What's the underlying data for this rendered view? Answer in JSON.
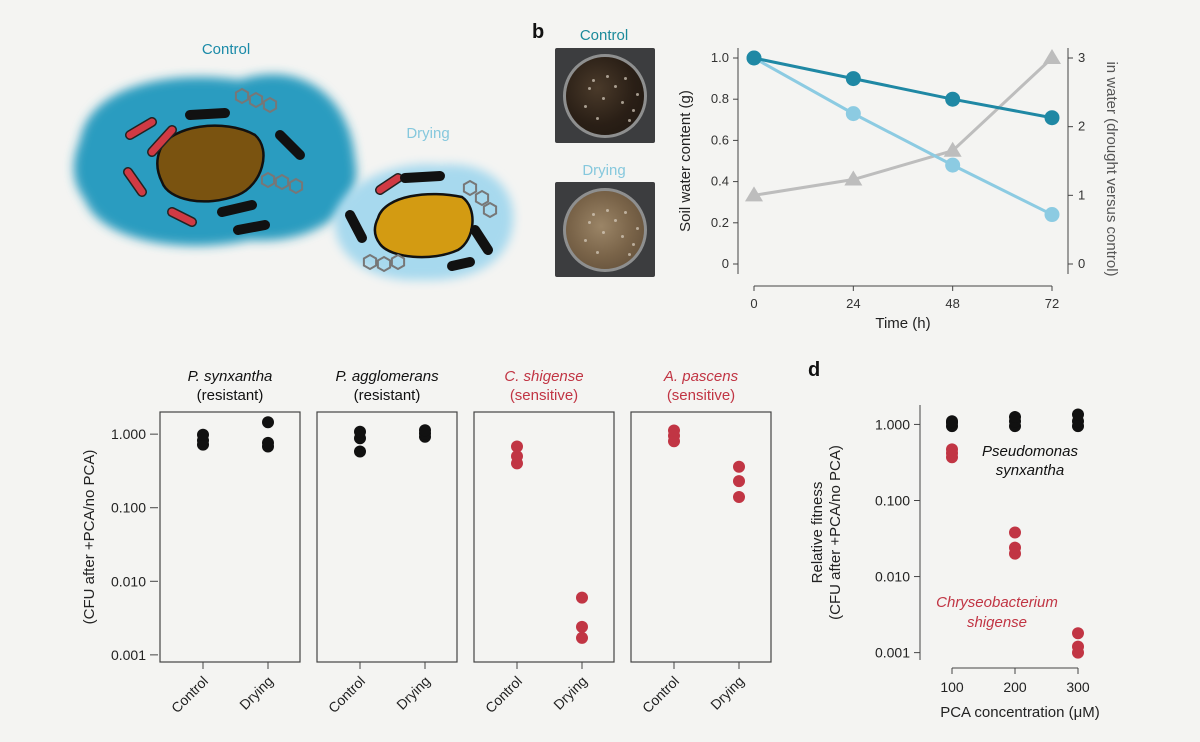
{
  "panel_a": {
    "label_control": "Control",
    "label_drying": "Drying",
    "colors": {
      "control_fill": "#2a9cc0",
      "drying_fill": "#a7d9ee",
      "soil_control": "#7a5310",
      "soil_drying": "#d39b12",
      "sensitive_cell": "#d03a44",
      "resistant_cell": "#111111",
      "molecule": "#777777"
    }
  },
  "panel_b": {
    "letter": "b",
    "photo_control_label": "Control",
    "photo_drying_label": "Drying",
    "photo_control_label_color": "#1a8a9a",
    "photo_drying_label_color": "#86c8dd"
  },
  "panel_d_letter": "d",
  "colors": {
    "black": "#111111",
    "red": "#c13544",
    "dark_teal": "#1f88a4",
    "light_teal": "#8ccbe2",
    "grey": "#bdbdbd"
  },
  "chart_data": [
    {
      "id": "soil_water",
      "type": "line",
      "x": [
        0,
        24,
        48,
        72
      ],
      "xticks": [
        "0",
        "24",
        "48",
        "72"
      ],
      "xlabel": "Time (h)",
      "ylabel": "Soil water content (g)",
      "ylim": [
        0,
        1.0
      ],
      "yticks": [
        "0",
        "0.2",
        "0.4",
        "0.6",
        "0.8",
        "1.0"
      ],
      "y2label": "in water (drought versus control)",
      "y2lim": [
        0,
        3
      ],
      "y2ticks": [
        "0",
        "1",
        "2",
        "3"
      ],
      "series": [
        {
          "values": [
            1.0,
            0.9,
            0.8,
            0.71
          ],
          "color": "#1f88a4",
          "marker": "circle",
          "axis": "left"
        },
        {
          "values": [
            1.0,
            0.73,
            0.48,
            0.24
          ],
          "color": "#8ccbe2",
          "marker": "circle",
          "axis": "left"
        },
        {
          "values": [
            1.0,
            1.23,
            1.65,
            3.0
          ],
          "color": "#bdbdbd",
          "marker": "triangle",
          "axis": "right"
        }
      ]
    },
    {
      "id": "pca_panels",
      "type": "scatter",
      "ylabel": "(CFU after +PCA/no PCA)",
      "yscale": "log",
      "ylim": [
        0.0008,
        2.0
      ],
      "yticks": [
        "0.001",
        "0.010",
        "0.100",
        "1.000"
      ],
      "categories": [
        "Control",
        "Drying"
      ],
      "panels": [
        {
          "title_italic": "P. synxantha",
          "title_sub": "(resistant)",
          "color": "#111111",
          "Control": [
            0.72,
            0.82,
            0.98
          ],
          "Drying": [
            0.68,
            0.76,
            1.45
          ]
        },
        {
          "title_italic": "P. agglomerans",
          "title_sub": "(resistant)",
          "color": "#111111",
          "Control": [
            0.58,
            0.88,
            1.08
          ],
          "Drying": [
            0.92,
            1.02,
            1.13
          ]
        },
        {
          "title_italic": "C. shigense",
          "title_sub": "(sensitive)",
          "color": "#c13544",
          "Control": [
            0.4,
            0.5,
            0.68
          ],
          "Drying": [
            0.0017,
            0.0024,
            0.006
          ]
        },
        {
          "title_italic": "A. pascens",
          "title_sub": "(sensitive)",
          "color": "#c13544",
          "Control": [
            0.8,
            0.95,
            1.12
          ],
          "Drying": [
            0.14,
            0.23,
            0.36
          ]
        }
      ]
    },
    {
      "id": "relative_fitness",
      "type": "scatter",
      "xlabel": "PCA concentration (μM)",
      "ylabel_line1": "Relative fitness",
      "ylabel_line2": "(CFU after +PCA/no PCA)",
      "yscale": "log",
      "ylim": [
        0.0008,
        1.8
      ],
      "yticks": [
        "0.001",
        "0.010",
        "0.100",
        "1.000"
      ],
      "categories": [
        "100",
        "200",
        "300"
      ],
      "series": [
        {
          "name_line1": "Pseudomonas",
          "name_line2": "synxantha",
          "color": "#111111",
          "values": [
            [
              0.95,
              1.05,
              1.1
            ],
            [
              0.95,
              1.1,
              1.25
            ],
            [
              0.95,
              1.1,
              1.35
            ]
          ]
        },
        {
          "name_line1": "Chryseobacterium",
          "name_line2": "shigense",
          "color": "#c13544",
          "values": [
            [
              0.37,
              0.42,
              0.47
            ],
            [
              0.02,
              0.024,
              0.038
            ],
            [
              0.001,
              0.0012,
              0.0018
            ]
          ]
        }
      ]
    }
  ]
}
